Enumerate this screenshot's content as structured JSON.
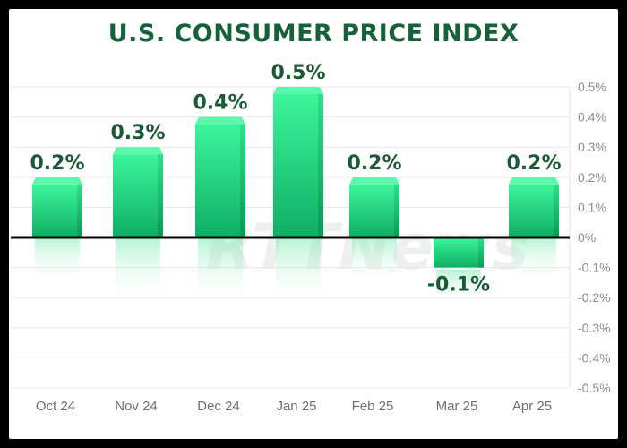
{
  "chart_data": {
    "type": "bar",
    "title": "U.S. CONSUMER PRICE INDEX",
    "categories": [
      "Oct 24",
      "Nov 24",
      "Dec 24",
      "Jan 25",
      "Feb 25",
      "Mar 25",
      "Apr 25"
    ],
    "values": [
      0.2,
      0.3,
      0.4,
      0.5,
      0.2,
      -0.1,
      0.2
    ],
    "data_labels": [
      "0.2%",
      "0.3%",
      "0.4%",
      "0.5%",
      "0.2%",
      "-0.1%",
      "0.2%"
    ],
    "ylim": [
      -0.5,
      0.5
    ],
    "yticks": [
      0.5,
      0.4,
      0.3,
      0.2,
      0.1,
      0,
      -0.1,
      -0.2,
      -0.3,
      -0.4,
      -0.5
    ],
    "ytick_labels": [
      "0.5%",
      "0.4%",
      "0.3%",
      "0.2%",
      "0.1%",
      "0%",
      "-0.1%",
      "-0.2%",
      "-0.3%",
      "-0.4%",
      "-0.5%"
    ],
    "y_axis_side": "right",
    "grid": true,
    "bar_color_top": "#3cf59b",
    "bar_color_bottom": "#0fae63",
    "title_color": "#17613a",
    "label_color": "#1c5a35",
    "watermark": "RTTNews"
  }
}
